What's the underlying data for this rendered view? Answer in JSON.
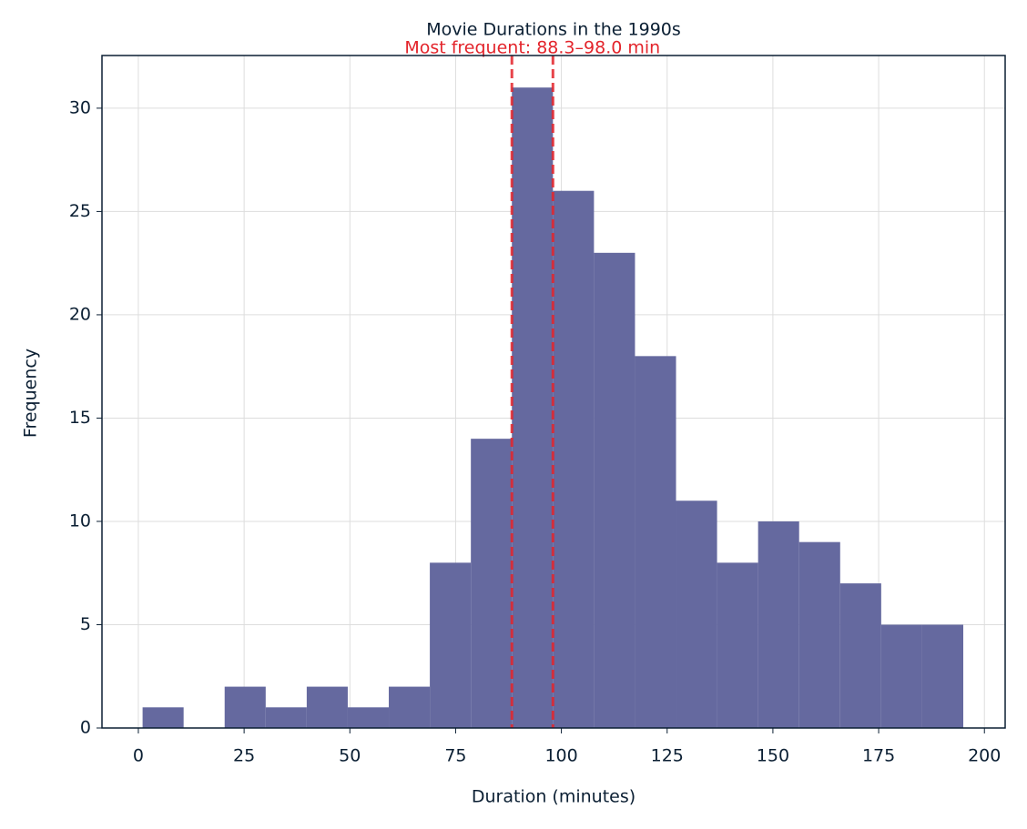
{
  "chart_data": {
    "type": "histogram",
    "title": "Movie Durations in the 1990s",
    "x_label": "Duration (minutes)",
    "y_label": "Frequency",
    "annotation": "Most frequent: 88.3–98.0 min",
    "bins": [
      1,
      10.7,
      20.4,
      30.1,
      39.8,
      49.5,
      59.2,
      68.9,
      78.6,
      88.3,
      98.0,
      107.7,
      117.4,
      127.1,
      136.8,
      146.5,
      156.2,
      165.9,
      175.6,
      185.3,
      195
    ],
    "values": [
      1,
      0,
      2,
      1,
      2,
      1,
      2,
      8,
      14,
      31,
      26,
      23,
      18,
      11,
      8,
      10,
      9,
      7,
      5,
      5
    ],
    "color": "#65699f",
    "highlight_color": "#e3242b",
    "xlim": [
      -8.6,
      204.9
    ],
    "ylim": [
      0,
      32.55
    ],
    "xticks": [
      0,
      25,
      50,
      75,
      100,
      125,
      150,
      175,
      200
    ],
    "yticks": [
      0,
      5,
      10,
      15,
      20,
      25,
      30
    ],
    "grid": true
  }
}
